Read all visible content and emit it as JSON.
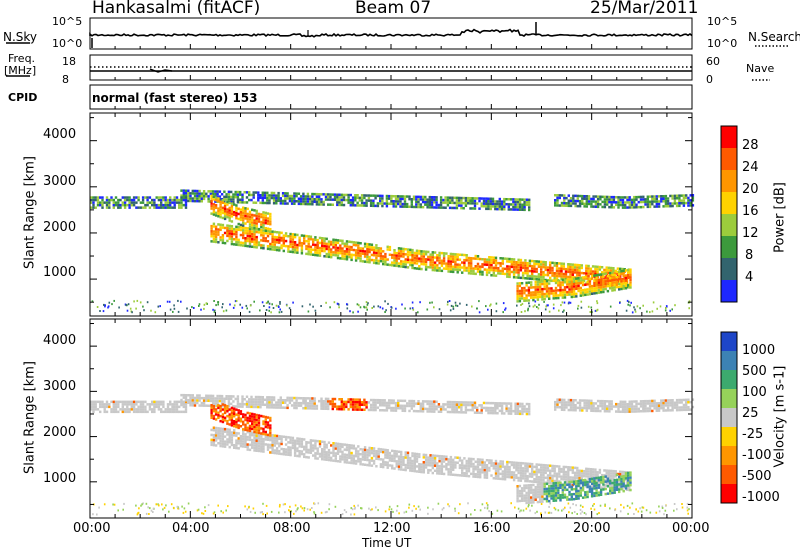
{
  "header": {
    "station": "Hankasalmi (fitACF)",
    "beam": "Beam 07",
    "date": "25/Mar/2011"
  },
  "top_panels": {
    "nsky_label": "N.Sky",
    "nsearch_label": "N.Search",
    "nsky_ticks": [
      "10^5",
      "10^0"
    ],
    "nsearch_ticks": [
      "10^5",
      "10^0"
    ],
    "freq_label": "Freq.",
    "freq_unit": "[MHz]",
    "freq_ticks": [
      "18",
      "8"
    ],
    "nave_label": "Nave",
    "nave_ticks": [
      "60",
      "0"
    ],
    "cpid_label": "CPID",
    "cpid_value": "normal (fast stereo) 153"
  },
  "x_axis": {
    "label": "Time UT",
    "ticks": [
      "00:00",
      "04:00",
      "08:00",
      "12:00",
      "16:00",
      "20:00",
      "00:00"
    ]
  },
  "chart_data": [
    {
      "type": "heatmap",
      "variable": "power",
      "ylabel": "Slant Range [km]",
      "ylim": [
        200,
        4600
      ],
      "yticks": [
        "4000",
        "3000",
        "2000",
        "1000"
      ],
      "xlabel": "Time UT",
      "colorbar": {
        "label": "Power [dB]",
        "ticks": [
          "28",
          "24",
          "20",
          "16",
          "12",
          "8",
          "4"
        ],
        "colors": [
          "#ff0000",
          "#ff5a00",
          "#ff9600",
          "#ffd200",
          "#9ccc3c",
          "#3c9a3c",
          "#32646e",
          "#1e28ff"
        ]
      },
      "bands": [
        {
          "name": "main",
          "start_h": 4.8,
          "end_h": 21.5,
          "range_start": 2000,
          "range_mid": 1400,
          "range_end": 1000,
          "level": "strong"
        },
        {
          "name": "upper",
          "start_h": 3.6,
          "end_h": 17.5,
          "range_start": 2800,
          "range_mid": 2700,
          "range_end": 2600,
          "level": "weak"
        },
        {
          "name": "upper_patch",
          "start_h": 4.8,
          "end_h": 7.2,
          "range_start": 2600,
          "range_mid": 2350,
          "range_end": 2200,
          "level": "strong"
        },
        {
          "name": "lower_late",
          "start_h": 17.0,
          "end_h": 21.5,
          "range_start": 700,
          "range_mid": 800,
          "range_end": 1000,
          "level": "strong"
        },
        {
          "name": "early",
          "start_h": 0.0,
          "end_h": 3.8,
          "range_start": 2650,
          "range_mid": 2650,
          "range_end": 2650,
          "level": "weak"
        },
        {
          "name": "late",
          "start_h": 18.5,
          "end_h": 24.0,
          "range_start": 2700,
          "range_mid": 2650,
          "range_end": 2700,
          "level": "weak"
        }
      ]
    },
    {
      "type": "heatmap",
      "variable": "velocity",
      "ylabel": "Slant Range [km]",
      "ylim": [
        200,
        4600
      ],
      "yticks": [
        "4000",
        "3000",
        "2000",
        "1000"
      ],
      "xlabel": "Time UT",
      "colorbar": {
        "label": "Velocity [m s-1]",
        "ticks": [
          "1000",
          "500",
          "100",
          "25",
          "-25",
          "-100",
          "-500",
          "-1000"
        ],
        "colors": [
          "#1e46c8",
          "#3c82b4",
          "#3caa6e",
          "#96d25a",
          "#c8c8c8",
          "#ffd200",
          "#ff9600",
          "#ff5a00",
          "#ff0000"
        ]
      }
    }
  ]
}
